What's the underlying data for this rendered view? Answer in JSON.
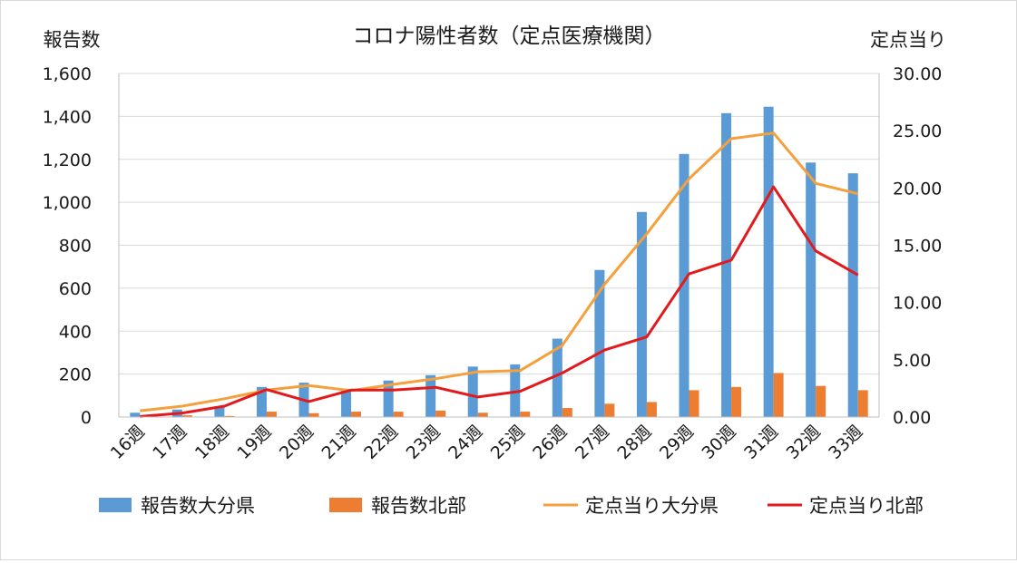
{
  "chart_data": {
    "type": "bar+line",
    "title": "コロナ陽性者数（定点医療機関）",
    "y_left_label": "報告数",
    "y_right_label": "定点当り",
    "y_left_lim": [
      0,
      1600
    ],
    "y_left_ticks": [
      "0",
      "200",
      "400",
      "600",
      "800",
      "1,000",
      "1,200",
      "1,400",
      "1,600"
    ],
    "y_right_lim": [
      0,
      30
    ],
    "y_right_ticks": [
      "0.00",
      "5.00",
      "10.00",
      "15.00",
      "20.00",
      "25.00",
      "30.00"
    ],
    "grid": true,
    "legend_position": "bottom",
    "categories": [
      "16週",
      "17週",
      "18週",
      "19週",
      "20週",
      "21週",
      "22週",
      "23週",
      "24週",
      "25週",
      "26週",
      "27週",
      "28週",
      "29週",
      "30週",
      "31週",
      "32週",
      "33週"
    ],
    "series": [
      {
        "name": "報告数大分県",
        "kind": "bar",
        "axis": "left",
        "color": "#5b9bd5",
        "values": [
          20,
          35,
          50,
          140,
          160,
          130,
          170,
          195,
          235,
          245,
          365,
          685,
          955,
          1225,
          1415,
          1445,
          1185,
          1135
        ]
      },
      {
        "name": "報告数北部",
        "kind": "bar",
        "axis": "left",
        "color": "#ed7d31",
        "values": [
          3,
          8,
          5,
          25,
          18,
          25,
          25,
          30,
          20,
          25,
          42,
          62,
          70,
          125,
          140,
          205,
          145,
          125
        ]
      },
      {
        "name": "定点当り大分県",
        "kind": "line",
        "axis": "right",
        "color": "#f4a03c",
        "values": [
          0.55,
          0.95,
          1.6,
          2.35,
          2.75,
          2.3,
          2.85,
          3.35,
          3.95,
          4.05,
          6.25,
          11.6,
          16.0,
          20.8,
          24.3,
          24.8,
          20.4,
          19.5
        ]
      },
      {
        "name": "定点当り北部",
        "kind": "line",
        "axis": "right",
        "color": "#e31a1c",
        "values": [
          0.05,
          0.35,
          0.95,
          2.4,
          1.35,
          2.35,
          2.35,
          2.6,
          1.75,
          2.25,
          3.85,
          5.85,
          7.0,
          12.5,
          13.7,
          20.1,
          14.5,
          12.4
        ]
      }
    ]
  }
}
